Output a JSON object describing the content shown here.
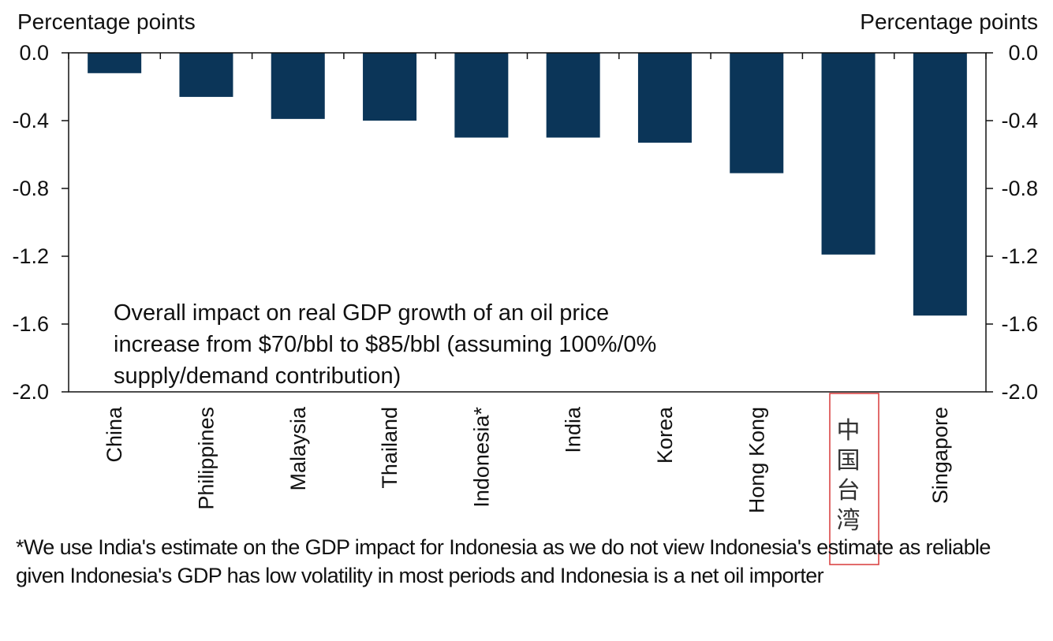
{
  "chart_data": {
    "type": "bar",
    "orientation": "vertical",
    "left_axis_label": "Percentage points",
    "right_axis_label": "Percentage points",
    "ylim": [
      -2.0,
      0.0
    ],
    "yticks": [
      "0.0",
      "-0.4",
      "-0.8",
      "-1.2",
      "-1.6",
      "-2.0"
    ],
    "ytick_values": [
      0.0,
      -0.4,
      -0.8,
      -1.2,
      -1.6,
      -2.0
    ],
    "categories": [
      "China",
      "Philippines",
      "Malaysia",
      "Thailand",
      "Indonesia*",
      "India",
      "Korea",
      "Hong Kong",
      "中国台湾",
      "Singapore"
    ],
    "values": [
      -0.12,
      -0.26,
      -0.39,
      -0.4,
      -0.5,
      -0.5,
      -0.53,
      -0.71,
      -1.19,
      -1.55
    ],
    "bar_color": "#0B3558",
    "highlight_box_color": "#D93A3A",
    "annotation_lines": [
      "Overall  impact on real GDP growth  of an oil price",
      "increase from $70/bbl  to $85/bbl (assuming 100%/0%",
      "supply/demand  contribution)"
    ],
    "footnote": "*We use India's estimate on the GDP impact for Indonesia as we do not view Indonesia's estimate as reliable given Indonesia's GDP has low volatility in most periods and Indonesia is a net oil importer"
  }
}
